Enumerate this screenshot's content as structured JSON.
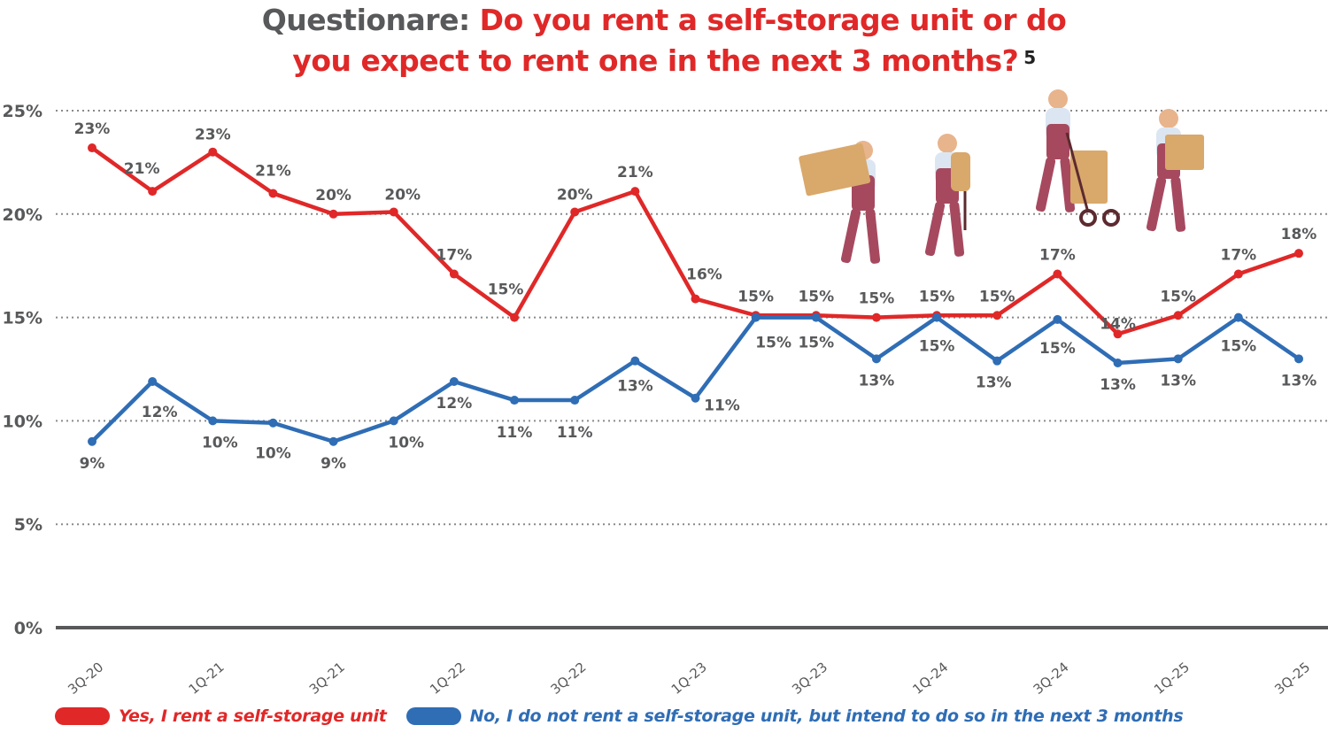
{
  "title": {
    "lead": "Questionare:",
    "question_line1": "Do you rent a self-storage unit or do",
    "question_line2": "you expect to rent one in the next 3 months?",
    "footnote": "5"
  },
  "colors": {
    "yes": "#e02828",
    "no": "#2f6db5",
    "text": "#58595b",
    "grid": "#8a8a8a",
    "axis": "#58595b"
  },
  "legend": [
    {
      "label": "Yes, I rent a self-storage unit",
      "color": "#e02828"
    },
    {
      "label": "No, I do not rent a self-storage unit, but intend to do so in the next 3 months",
      "color": "#2f6db5"
    }
  ],
  "illustration": {
    "description": "Four cartoon movers in maroon overalls carrying boxes, a chair and pushing a hand truck"
  },
  "chart_data": {
    "type": "line",
    "title": "Questionare: Do you rent a self-storage unit or do you expect to rent one in the next 3 months?",
    "xlabel": "",
    "ylabel": "",
    "ylim": [
      0,
      25
    ],
    "yticks": [
      "0%",
      "5%",
      "10%",
      "15%",
      "20%",
      "25%"
    ],
    "grid": "horizontal dotted",
    "legend_position": "bottom",
    "x": [
      "3Q-20",
      "4Q-20",
      "1Q-21",
      "2Q-21",
      "3Q-21",
      "4Q-21",
      "1Q-22",
      "2Q-22",
      "3Q-22",
      "4Q-22",
      "1Q-23",
      "2Q-23",
      "3Q-23",
      "4Q-23",
      "1Q-24",
      "2Q-24",
      "3Q-24",
      "4Q-24",
      "1Q-25",
      "2Q-25",
      "3Q-25"
    ],
    "xtick_labels": [
      "3Q-20",
      "1Q-21",
      "3Q-21",
      "1Q-22",
      "3Q-22",
      "1Q-23",
      "3Q-23",
      "1Q-24",
      "3Q-24",
      "1Q-25",
      "3Q-25"
    ],
    "series": [
      {
        "name": "Yes, I rent a self-storage unit",
        "color": "#e02828",
        "values": [
          23.2,
          21.1,
          23.0,
          21.0,
          20.0,
          20.1,
          17.1,
          15.0,
          20.1,
          21.1,
          15.9,
          15.1,
          15.1,
          15.0,
          15.1,
          15.1,
          17.1,
          14.2,
          15.1,
          17.1,
          18.1
        ],
        "labels": [
          "23%",
          "21%",
          "23%",
          "21%",
          "20%",
          "20%",
          "17%",
          "15%",
          "20%",
          "21%",
          "16%",
          "15%",
          "15%",
          "15%",
          "15%",
          "15%",
          "17%",
          "14%",
          "15%",
          "17%",
          "18%"
        ]
      },
      {
        "name": "No, I do not rent a self-storage unit, but intend to do so in the next 3 months",
        "color": "#2f6db5",
        "values": [
          9.0,
          11.9,
          10.0,
          9.9,
          9.0,
          10.0,
          11.9,
          11.0,
          11.0,
          12.9,
          11.1,
          15.0,
          15.0,
          13.0,
          15.0,
          12.9,
          14.9,
          12.8,
          13.0,
          15.0,
          13.0
        ],
        "labels": [
          "9%",
          "12%",
          "10%",
          "10%",
          "9%",
          "10%",
          "12%",
          "11%",
          "11%",
          "13%",
          "11%",
          "15%",
          "15%",
          "13%",
          "15%",
          "13%",
          "15%",
          "13%",
          "13%",
          "15%",
          "13%"
        ]
      }
    ]
  }
}
